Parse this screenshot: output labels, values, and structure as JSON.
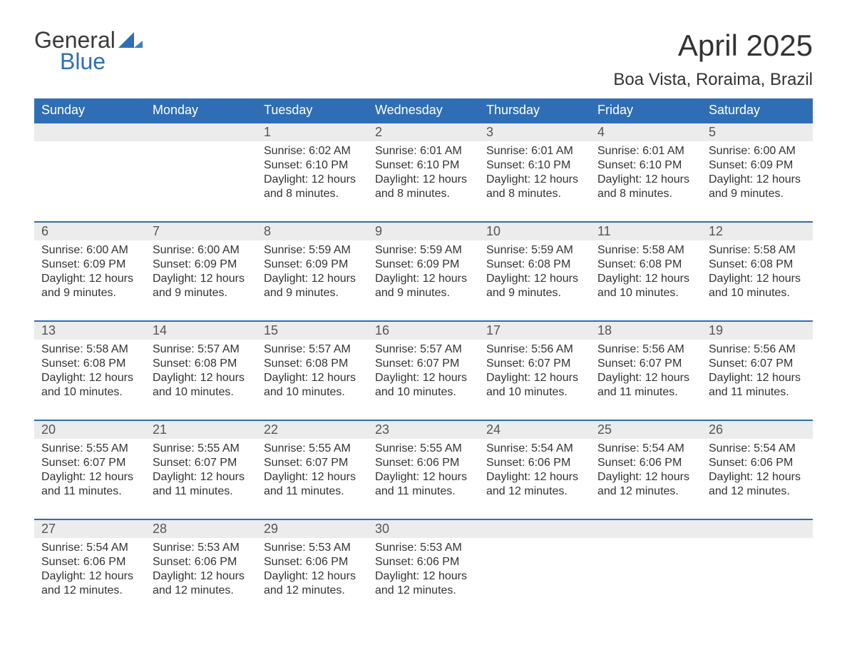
{
  "logo": {
    "word1": "General",
    "word2": "Blue",
    "mark_color": "#2f6eb5",
    "text_color": "#3a3a3a"
  },
  "header": {
    "month": "April 2025",
    "location": "Boa Vista, Roraima, Brazil"
  },
  "colors": {
    "header_bg": "#2f6eb5",
    "header_text": "#ffffff",
    "daynum_bg": "#ececec",
    "text": "#333333",
    "rule": "#2f6eb5",
    "background": "#ffffff"
  },
  "days_of_week": [
    "Sunday",
    "Monday",
    "Tuesday",
    "Wednesday",
    "Thursday",
    "Friday",
    "Saturday"
  ],
  "labels": {
    "sunrise": "Sunrise: ",
    "sunset": "Sunset: ",
    "daylight": "Daylight: "
  },
  "weeks": [
    [
      null,
      null,
      {
        "n": "1",
        "sr": "6:02 AM",
        "ss": "6:10 PM",
        "dl": "12 hours and 8 minutes."
      },
      {
        "n": "2",
        "sr": "6:01 AM",
        "ss": "6:10 PM",
        "dl": "12 hours and 8 minutes."
      },
      {
        "n": "3",
        "sr": "6:01 AM",
        "ss": "6:10 PM",
        "dl": "12 hours and 8 minutes."
      },
      {
        "n": "4",
        "sr": "6:01 AM",
        "ss": "6:10 PM",
        "dl": "12 hours and 8 minutes."
      },
      {
        "n": "5",
        "sr": "6:00 AM",
        "ss": "6:09 PM",
        "dl": "12 hours and 9 minutes."
      }
    ],
    [
      {
        "n": "6",
        "sr": "6:00 AM",
        "ss": "6:09 PM",
        "dl": "12 hours and 9 minutes."
      },
      {
        "n": "7",
        "sr": "6:00 AM",
        "ss": "6:09 PM",
        "dl": "12 hours and 9 minutes."
      },
      {
        "n": "8",
        "sr": "5:59 AM",
        "ss": "6:09 PM",
        "dl": "12 hours and 9 minutes."
      },
      {
        "n": "9",
        "sr": "5:59 AM",
        "ss": "6:09 PM",
        "dl": "12 hours and 9 minutes."
      },
      {
        "n": "10",
        "sr": "5:59 AM",
        "ss": "6:08 PM",
        "dl": "12 hours and 9 minutes."
      },
      {
        "n": "11",
        "sr": "5:58 AM",
        "ss": "6:08 PM",
        "dl": "12 hours and 10 minutes."
      },
      {
        "n": "12",
        "sr": "5:58 AM",
        "ss": "6:08 PM",
        "dl": "12 hours and 10 minutes."
      }
    ],
    [
      {
        "n": "13",
        "sr": "5:58 AM",
        "ss": "6:08 PM",
        "dl": "12 hours and 10 minutes."
      },
      {
        "n": "14",
        "sr": "5:57 AM",
        "ss": "6:08 PM",
        "dl": "12 hours and 10 minutes."
      },
      {
        "n": "15",
        "sr": "5:57 AM",
        "ss": "6:08 PM",
        "dl": "12 hours and 10 minutes."
      },
      {
        "n": "16",
        "sr": "5:57 AM",
        "ss": "6:07 PM",
        "dl": "12 hours and 10 minutes."
      },
      {
        "n": "17",
        "sr": "5:56 AM",
        "ss": "6:07 PM",
        "dl": "12 hours and 10 minutes."
      },
      {
        "n": "18",
        "sr": "5:56 AM",
        "ss": "6:07 PM",
        "dl": "12 hours and 11 minutes."
      },
      {
        "n": "19",
        "sr": "5:56 AM",
        "ss": "6:07 PM",
        "dl": "12 hours and 11 minutes."
      }
    ],
    [
      {
        "n": "20",
        "sr": "5:55 AM",
        "ss": "6:07 PM",
        "dl": "12 hours and 11 minutes."
      },
      {
        "n": "21",
        "sr": "5:55 AM",
        "ss": "6:07 PM",
        "dl": "12 hours and 11 minutes."
      },
      {
        "n": "22",
        "sr": "5:55 AM",
        "ss": "6:07 PM",
        "dl": "12 hours and 11 minutes."
      },
      {
        "n": "23",
        "sr": "5:55 AM",
        "ss": "6:06 PM",
        "dl": "12 hours and 11 minutes."
      },
      {
        "n": "24",
        "sr": "5:54 AM",
        "ss": "6:06 PM",
        "dl": "12 hours and 12 minutes."
      },
      {
        "n": "25",
        "sr": "5:54 AM",
        "ss": "6:06 PM",
        "dl": "12 hours and 12 minutes."
      },
      {
        "n": "26",
        "sr": "5:54 AM",
        "ss": "6:06 PM",
        "dl": "12 hours and 12 minutes."
      }
    ],
    [
      {
        "n": "27",
        "sr": "5:54 AM",
        "ss": "6:06 PM",
        "dl": "12 hours and 12 minutes."
      },
      {
        "n": "28",
        "sr": "5:53 AM",
        "ss": "6:06 PM",
        "dl": "12 hours and 12 minutes."
      },
      {
        "n": "29",
        "sr": "5:53 AM",
        "ss": "6:06 PM",
        "dl": "12 hours and 12 minutes."
      },
      {
        "n": "30",
        "sr": "5:53 AM",
        "ss": "6:06 PM",
        "dl": "12 hours and 12 minutes."
      },
      null,
      null,
      null
    ]
  ]
}
